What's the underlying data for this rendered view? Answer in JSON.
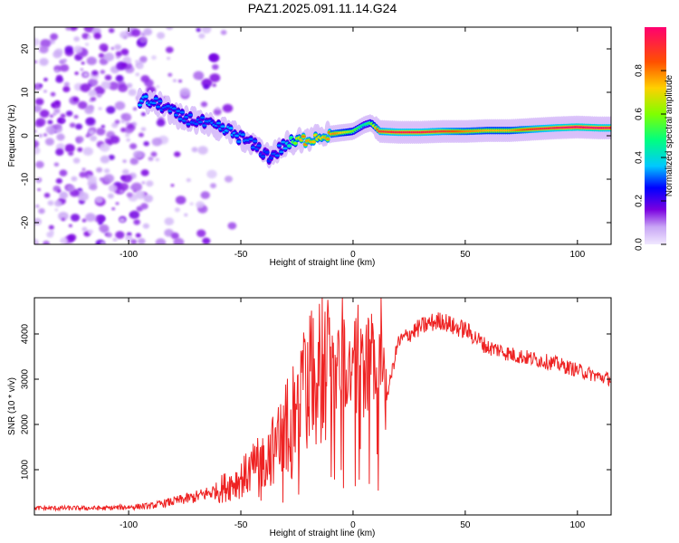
{
  "title": "PAZ1.2025.091.11.14.G24",
  "chart_data": [
    {
      "type": "heatmap",
      "title": "PAZ1.2025.091.11.14.G24",
      "xlabel": "Height of straight line (km)",
      "ylabel": "Frequency (Hz)",
      "xlim": [
        -142,
        115
      ],
      "ylim": [
        -25,
        25
      ],
      "x_ticks": [
        -100,
        -50,
        0,
        50,
        100
      ],
      "y_ticks": [
        -20,
        -10,
        0,
        10,
        20
      ],
      "colorbar": {
        "label": "Normalized spectral amplitude",
        "range": [
          0,
          1
        ],
        "ticks": [
          "0.0",
          "0.2",
          "0.4",
          "0.6",
          "0.8"
        ],
        "colormap": [
          "#d8c8f0",
          "#7a00e0",
          "#0000ff",
          "#00c8ff",
          "#00ff80",
          "#a0ff00",
          "#ffd000",
          "#ff5000",
          "#ff0060"
        ]
      },
      "ridge": {
        "x": [
          -92,
          -85,
          -78,
          -70,
          -62,
          -55,
          -48,
          -42,
          -37,
          -30,
          -22,
          -15,
          -8,
          0,
          5,
          8,
          12,
          20,
          30,
          40,
          50,
          60,
          70,
          80,
          90,
          100,
          110,
          115
        ],
        "y": [
          8,
          7,
          4.5,
          3.5,
          2,
          1,
          -1,
          -3,
          -5,
          -2,
          -1,
          0,
          0.5,
          1,
          2.5,
          3,
          1,
          0.8,
          0.8,
          1,
          1,
          1.2,
          1.2,
          1.5,
          1.8,
          2,
          1.8,
          1.8
        ],
        "amplitude": [
          0.25,
          0.2,
          0.22,
          0.2,
          0.22,
          0.25,
          0.22,
          0.2,
          0.18,
          0.25,
          0.7,
          0.6,
          0.75,
          0.55,
          0.4,
          0.5,
          0.85,
          0.9,
          0.9,
          0.85,
          0.75,
          0.7,
          0.7,
          0.85,
          0.9,
          1.0,
          0.95,
          0.9
        ]
      }
    },
    {
      "type": "line",
      "xlabel": "Height of straight line (km)",
      "ylabel": "SNR (10 * v/v)",
      "xlim": [
        -142,
        115
      ],
      "ylim": [
        0,
        4800
      ],
      "x_ticks": [
        -100,
        -50,
        0,
        50,
        100
      ],
      "y_ticks": [
        1000,
        2000,
        3000,
        4000
      ],
      "color": "#ee2222",
      "envelope": {
        "x": [
          -142,
          -110,
          -90,
          -70,
          -60,
          -50,
          -40,
          -30,
          -25,
          -20,
          -15,
          -10,
          -5,
          0,
          5,
          10,
          15,
          20,
          25,
          30,
          35,
          40,
          45,
          50,
          55,
          60,
          65,
          70,
          80,
          90,
          100,
          110,
          115
        ],
        "y": [
          150,
          150,
          200,
          400,
          550,
          800,
          1200,
          1800,
          2300,
          2900,
          3300,
          3000,
          3400,
          3200,
          3300,
          3500,
          2600,
          3800,
          4000,
          4150,
          4250,
          4300,
          4150,
          4100,
          3900,
          3700,
          3650,
          3550,
          3450,
          3350,
          3200,
          3050,
          3000
        ]
      }
    }
  ]
}
